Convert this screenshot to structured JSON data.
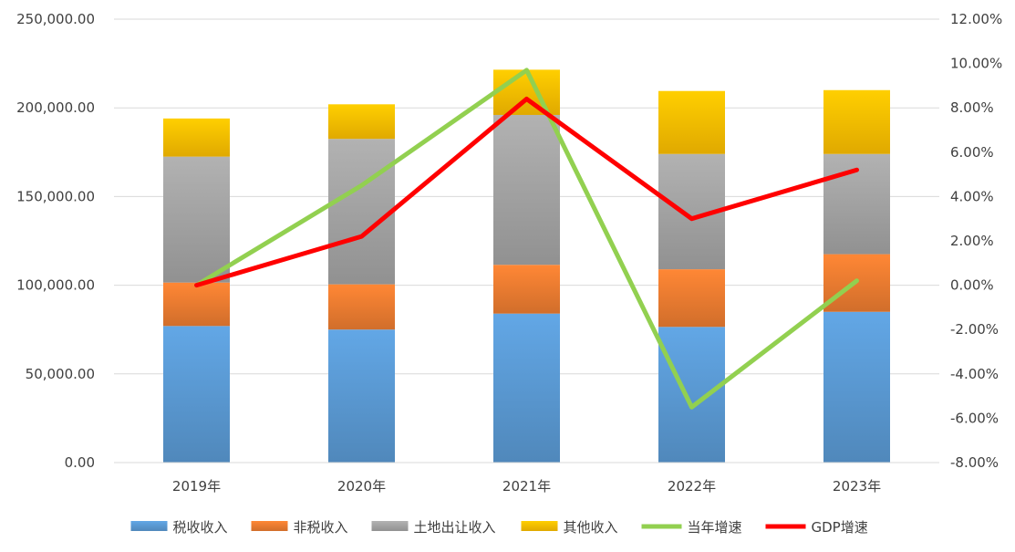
{
  "chart_data": {
    "type": "bar",
    "stacked": true,
    "categories": [
      "2019年",
      "2020年",
      "2021年",
      "2022年",
      "2023年"
    ],
    "series": [
      {
        "name": "税收收入",
        "kind": "bar",
        "color": "#5b9bd5",
        "values": [
          77000,
          75000,
          84000,
          76500,
          85000
        ]
      },
      {
        "name": "非税收入",
        "kind": "bar",
        "color": "#ed7d31",
        "values": [
          24500,
          25500,
          27500,
          32500,
          32500
        ]
      },
      {
        "name": "土地出让收入",
        "kind": "bar",
        "color": "#a5a5a5",
        "values": [
          71000,
          82000,
          84500,
          65000,
          56500
        ]
      },
      {
        "name": "其他收入",
        "kind": "bar",
        "color": "#ffc000",
        "values": [
          21500,
          19500,
          25500,
          35500,
          36000
        ]
      },
      {
        "name": "当年增速",
        "kind": "line",
        "axis": "right",
        "color": "#92d050",
        "values": [
          0.0,
          4.5,
          9.7,
          -5.5,
          0.2
        ]
      },
      {
        "name": "GDP增速",
        "kind": "line",
        "axis": "right",
        "color": "#ff0000",
        "values": [
          0.0,
          2.2,
          8.4,
          3.0,
          5.2
        ]
      }
    ],
    "y_left": {
      "min": 0,
      "max": 250000,
      "step": 50000,
      "tick_labels": [
        "0.00",
        "50,000.00",
        "100,000.00",
        "150,000.00",
        "200,000.00",
        "250,000.00"
      ]
    },
    "y_right": {
      "min": -8,
      "max": 12,
      "step": 2,
      "tick_labels": [
        "-8.00%",
        "-6.00%",
        "-4.00%",
        "-2.00%",
        "0.00%",
        "2.00%",
        "4.00%",
        "6.00%",
        "8.00%",
        "10.00%",
        "12.00%"
      ]
    },
    "grid": true,
    "legend": "bottom"
  }
}
